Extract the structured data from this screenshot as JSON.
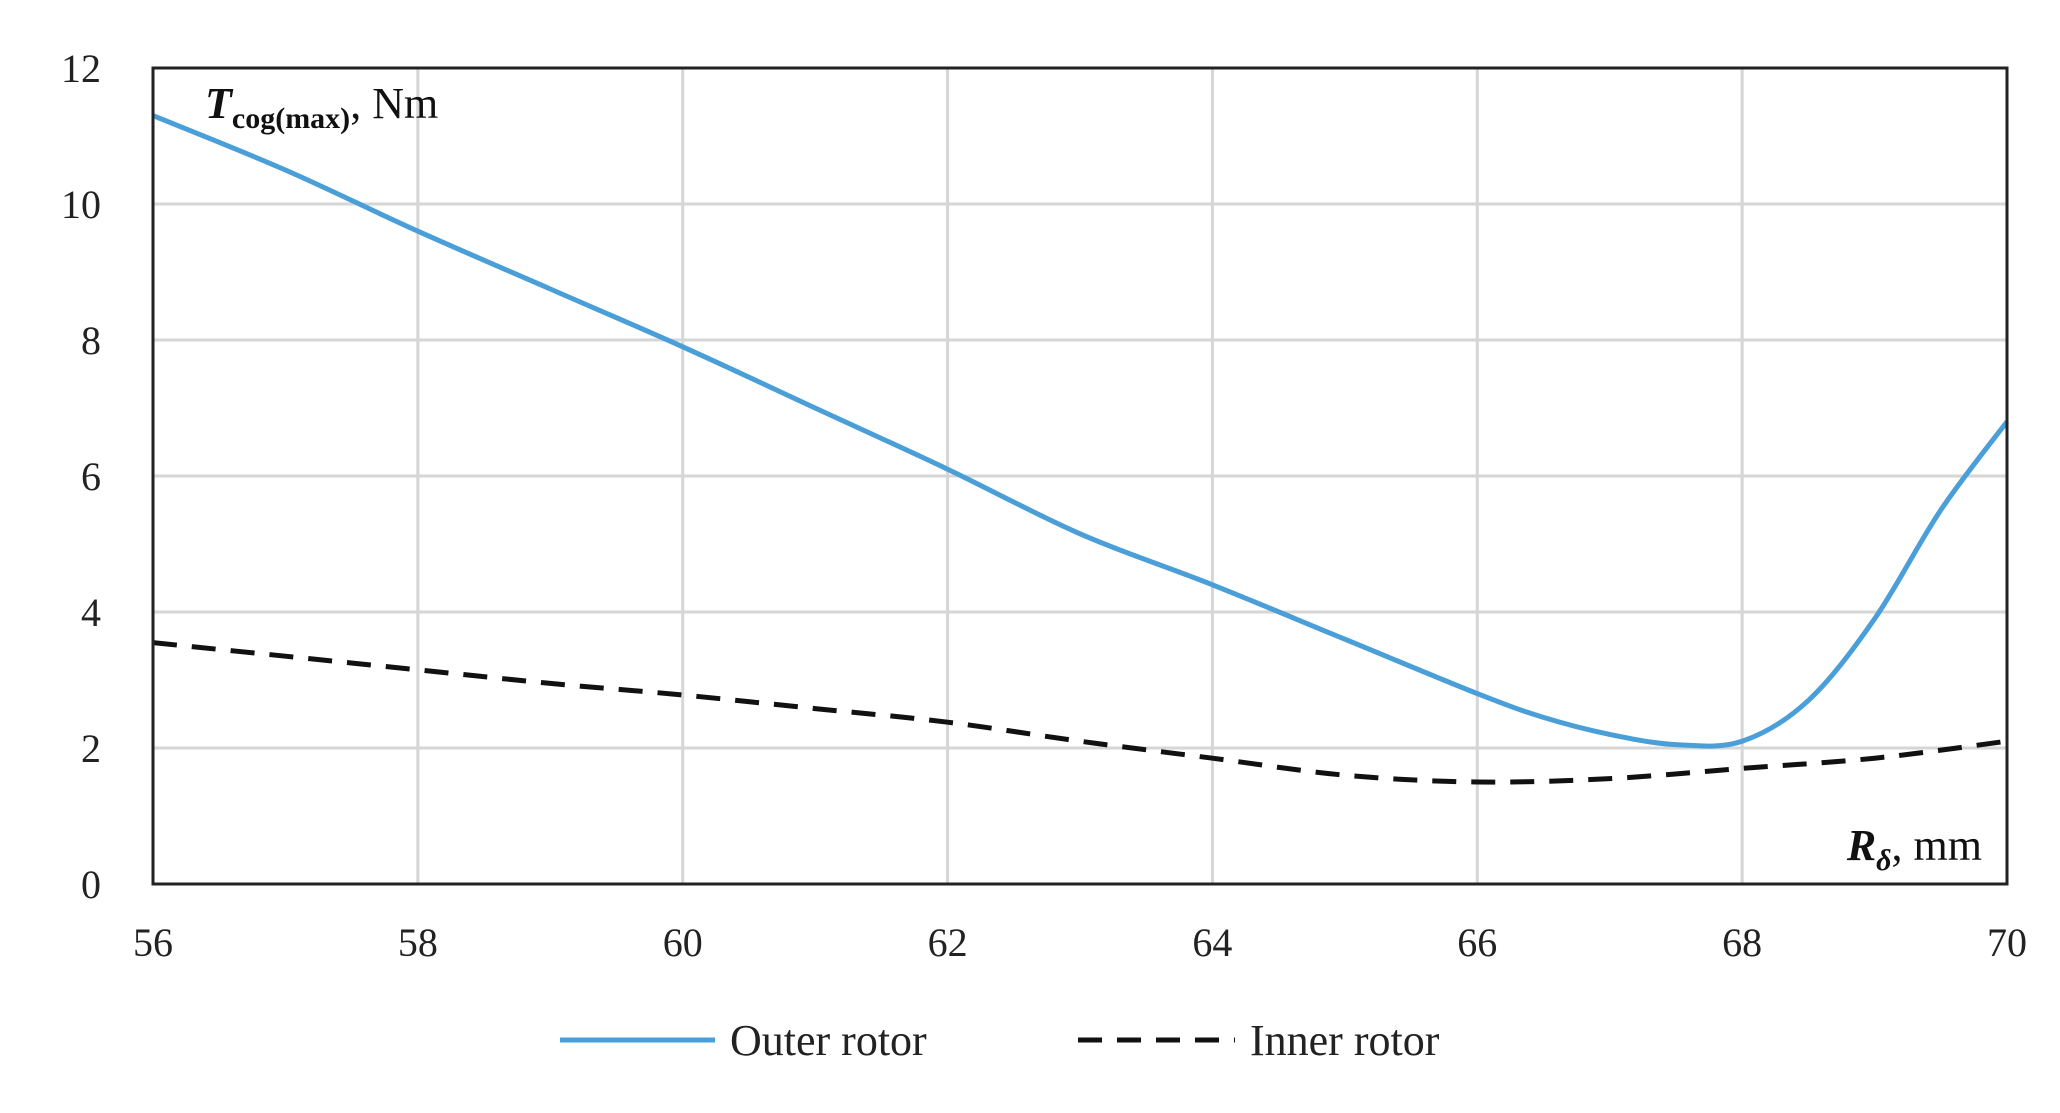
{
  "chart_data": {
    "type": "line",
    "ylabel": {
      "symbol": "T",
      "subscript": "cog(max)",
      "unit": ", Nm"
    },
    "xlabel": {
      "symbol": "R",
      "subscript": "δ",
      "unit": ", mm"
    },
    "xlim": [
      56,
      70
    ],
    "ylim": [
      0,
      12
    ],
    "xticks": [
      "56",
      "58",
      "60",
      "62",
      "64",
      "66",
      "68",
      "70"
    ],
    "yticks": [
      "0",
      "2",
      "4",
      "6",
      "8",
      "10",
      "12"
    ],
    "grid": true,
    "legend_position": "bottom",
    "series": [
      {
        "name": "Outer rotor",
        "color": "#4a9fd8",
        "style": "solid",
        "x": [
          56,
          57,
          58,
          59,
          60,
          61,
          62,
          63,
          64,
          65,
          66,
          66.5,
          67,
          67.5,
          68,
          68.5,
          69,
          69.5,
          70
        ],
        "y": [
          11.3,
          10.5,
          9.6,
          8.75,
          7.9,
          7.0,
          6.1,
          5.15,
          4.4,
          3.6,
          2.8,
          2.45,
          2.2,
          2.05,
          2.1,
          2.7,
          3.9,
          5.5,
          6.8
        ]
      },
      {
        "name": "Inner rotor",
        "color": "#111111",
        "style": "dashed",
        "x": [
          56,
          57,
          58,
          59,
          60,
          61,
          62,
          63,
          64,
          65,
          66,
          67,
          68,
          69,
          70
        ],
        "y": [
          3.55,
          3.35,
          3.15,
          2.95,
          2.78,
          2.58,
          2.38,
          2.1,
          1.85,
          1.6,
          1.5,
          1.55,
          1.7,
          1.85,
          2.1
        ]
      }
    ]
  }
}
